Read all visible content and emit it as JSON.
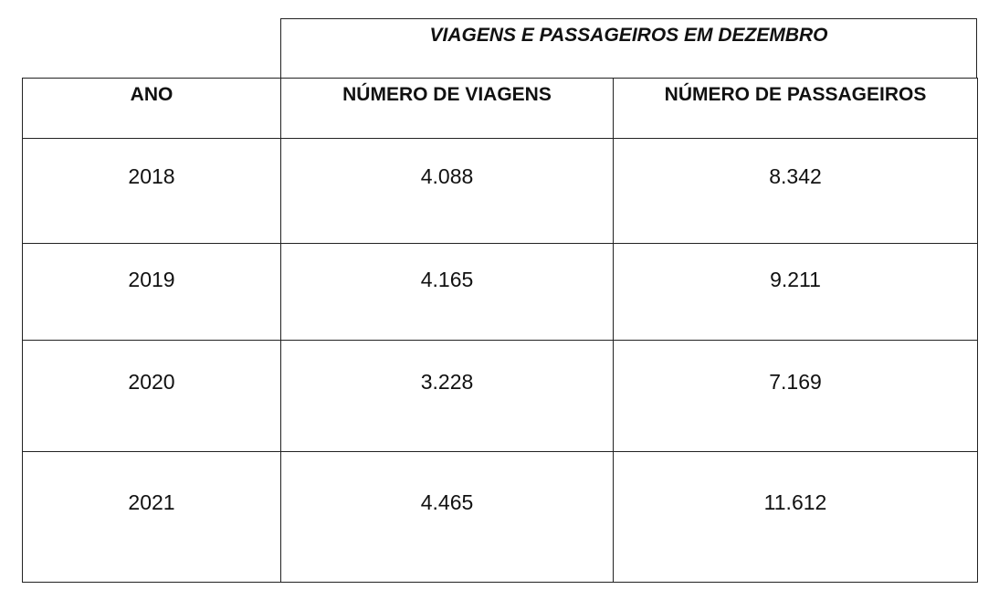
{
  "table": {
    "group_header": "VIAGENS E PASSAGEIROS EM DEZEMBRO",
    "columns": [
      "ANO",
      "NÚMERO DE VIAGENS",
      "NÚMERO DE PASSAGEIROS"
    ],
    "rows": [
      [
        "2018",
        "4.088",
        "8.342"
      ],
      [
        "2019",
        "4.165",
        "9.211"
      ],
      [
        "2020",
        "3.228",
        "7.169"
      ],
      [
        "2021",
        "4.465",
        "11.612"
      ]
    ]
  }
}
